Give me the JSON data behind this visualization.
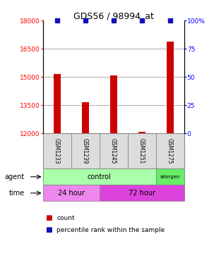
{
  "title": "GDS56 / 98994_at",
  "samples": [
    "GSM1233",
    "GSM1239",
    "GSM1245",
    "GSM1251",
    "GSM1275"
  ],
  "counts": [
    15150,
    13650,
    15100,
    12100,
    16900
  ],
  "percentile_ranks": [
    100,
    100,
    100,
    100,
    100
  ],
  "ylim_left": [
    12000,
    18000
  ],
  "yticks_left": [
    12000,
    13500,
    15000,
    16500,
    18000
  ],
  "ytick_labels_left": [
    "12000",
    "13500",
    "15000",
    "16500",
    "18000"
  ],
  "ylim_right": [
    0,
    100
  ],
  "yticks_right": [
    0,
    25,
    50,
    75,
    100
  ],
  "ytick_labels_right": [
    "0",
    "25",
    "50",
    "75",
    "100%"
  ],
  "bar_color": "#cc0000",
  "dot_color": "#1111bb",
  "agent_colors": [
    "#aaffaa",
    "#66ee66"
  ],
  "time_colors": [
    "#ee88ee",
    "#dd44dd"
  ],
  "sample_box_color": "#dddddd",
  "bar_width": 0.25,
  "gsm_fontsize": 5.5,
  "label_fontsize": 7.0,
  "title_fontsize": 9.0,
  "tick_fontsize": 6.5,
  "legend_fontsize": 6.5
}
